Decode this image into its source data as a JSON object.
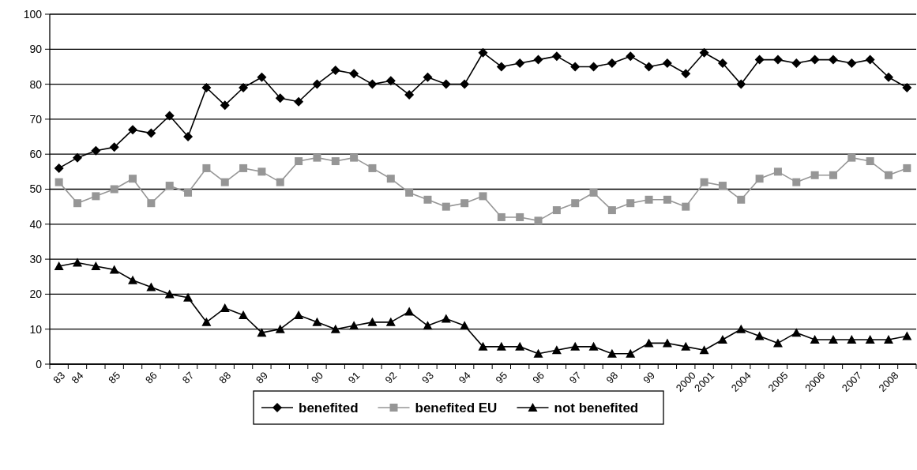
{
  "chart_data": {
    "type": "line",
    "categories": [
      "83",
      "84",
      null,
      "85",
      null,
      "86",
      null,
      "87",
      null,
      "88",
      null,
      "89",
      null,
      null,
      "90",
      null,
      "91",
      null,
      "92",
      null,
      "93",
      null,
      "94",
      null,
      "95",
      null,
      "96",
      null,
      "97",
      null,
      "98",
      null,
      "99",
      null,
      "2000",
      "2001",
      null,
      "2004",
      null,
      "2005",
      null,
      "2006",
      null,
      "2007",
      null,
      "2008",
      null
    ],
    "series": [
      {
        "name": "benefited",
        "color": "#000000",
        "marker": "diamond",
        "values": [
          56,
          59,
          61,
          62,
          67,
          66,
          71,
          65,
          79,
          74,
          79,
          82,
          76,
          75,
          80,
          84,
          83,
          80,
          81,
          77,
          82,
          80,
          80,
          89,
          85,
          86,
          87,
          88,
          85,
          85,
          86,
          88,
          85,
          86,
          83,
          89,
          86,
          80,
          87,
          87,
          86,
          87,
          87,
          86,
          87,
          82,
          79
        ]
      },
      {
        "name": "benefited EU",
        "color": "#969696",
        "marker": "square",
        "values": [
          52,
          46,
          48,
          50,
          53,
          46,
          51,
          49,
          56,
          52,
          56,
          55,
          52,
          58,
          59,
          58,
          59,
          56,
          53,
          49,
          47,
          45,
          46,
          48,
          42,
          42,
          41,
          44,
          46,
          49,
          44,
          46,
          47,
          47,
          45,
          52,
          51,
          47,
          53,
          55,
          52,
          54,
          54,
          59,
          58,
          54,
          56
        ]
      },
      {
        "name": "not benefited",
        "color": "#000000",
        "marker": "triangle",
        "values": [
          28,
          29,
          28,
          27,
          24,
          22,
          20,
          19,
          12,
          16,
          14,
          9,
          10,
          14,
          12,
          10,
          11,
          12,
          12,
          15,
          11,
          13,
          11,
          5,
          5,
          5,
          3,
          4,
          5,
          5,
          3,
          3,
          6,
          6,
          5,
          4,
          7,
          10,
          8,
          6,
          9,
          7,
          7,
          7,
          7,
          7,
          8
        ]
      }
    ],
    "ylim": [
      0,
      100
    ],
    "yticks": [
      0,
      10,
      20,
      30,
      40,
      50,
      60,
      70,
      80,
      90,
      100
    ],
    "grid": "y",
    "legend": "bottom"
  }
}
